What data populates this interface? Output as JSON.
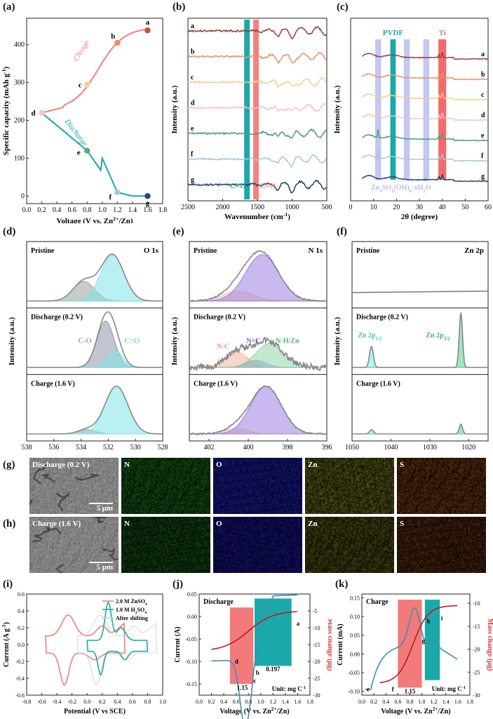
{
  "panel_labels": {
    "a": "(a)",
    "b": "(b)",
    "c": "(c)",
    "d": "(d)",
    "e": "(e)",
    "f": "(f)",
    "g": "(g)",
    "h": "(h)",
    "i": "(i)",
    "j": "(j)",
    "k": "(k)"
  },
  "colors": {
    "teal": "#1aa9a8",
    "red": "#f26b6b",
    "salmon": "#f07f7a",
    "lavender": "#b9bdf0",
    "purple": "#9d7fe0",
    "cyan": "#7fe3e6",
    "green": "#5bd08a"
  },
  "chart_data": [
    {
      "id": "a",
      "type": "line",
      "title": "",
      "xlabel": "Voltage (V vs. Zn2+/Zn)",
      "ylabel": "Specific capacity (mAh g-1)",
      "xlim": [
        0.0,
        1.8
      ],
      "ylim": [
        -20,
        470
      ],
      "xticks": [
        "0.0",
        "0.2",
        "0.4",
        "0.6",
        "0.8",
        "1.0",
        "1.2",
        "1.4",
        "1.6",
        "1.8"
      ],
      "yticks": [
        "0",
        "100",
        "200",
        "300",
        "400"
      ],
      "series": [
        {
          "name": "Charge",
          "x": [
            0.2,
            0.5,
            0.8,
            1.0,
            1.2,
            1.4,
            1.6
          ],
          "y": [
            220,
            235,
            295,
            345,
            405,
            432,
            438
          ]
        },
        {
          "name": "Discharge",
          "x": [
            0.2,
            0.4,
            0.6,
            0.8,
            1.0,
            1.2,
            1.4,
            1.6
          ],
          "y": [
            220,
            175,
            145,
            120,
            70,
            10,
            2,
            0
          ]
        }
      ],
      "points": [
        {
          "label": "a",
          "x": 1.6,
          "y": 438
        },
        {
          "label": "b",
          "x": 1.2,
          "y": 405
        },
        {
          "label": "c",
          "x": 0.8,
          "y": 295
        },
        {
          "label": "d",
          "x": 0.2,
          "y": 220
        },
        {
          "label": "e",
          "x": 0.8,
          "y": 120
        },
        {
          "label": "f",
          "x": 1.2,
          "y": 10
        },
        {
          "label": "g",
          "x": 1.6,
          "y": 0
        }
      ],
      "annotations": [
        "Chrage",
        "Discharge"
      ]
    },
    {
      "id": "b",
      "type": "line",
      "xlabel": "Wavenumber (cm-1)",
      "ylabel": "Intensity (a.u.)",
      "xlim": [
        2500,
        500
      ],
      "xticks": [
        "2500",
        "2000",
        "1500",
        "1000",
        "500"
      ],
      "series_labels": [
        "a",
        "b",
        "c",
        "d",
        "e",
        "f",
        "g"
      ],
      "bands": [
        {
          "label": "C=O",
          "center": 1650
        },
        {
          "label": "C=N",
          "center": 1520
        }
      ]
    },
    {
      "id": "c",
      "type": "line",
      "xlabel": "2θ (degree)",
      "ylabel": "Intensity (a.u.)",
      "xlim": [
        0,
        60
      ],
      "xticks": [
        "0",
        "10",
        "20",
        "30",
        "40",
        "50",
        "60"
      ],
      "series_labels": [
        "a",
        "b",
        "c",
        "d",
        "e",
        "f",
        "g"
      ],
      "bands": [
        {
          "label": "PVDF",
          "center": 18.5
        },
        {
          "label": "Ti",
          "center": 40
        }
      ],
      "zhs_bands": [
        12,
        24.5,
        33
      ],
      "annotation": "Zn4SO4(OH)6·xH2O"
    },
    {
      "id": "d",
      "type": "line",
      "element": "O 1s",
      "xlabel": "Binding energy (eV)",
      "ylabel": "Intensity (a.u.)",
      "xlim": [
        538,
        528
      ],
      "xticks": [
        "538",
        "536",
        "534",
        "532",
        "530",
        "528"
      ],
      "subpanels": [
        "Pristine",
        "Discharge (0.2 V)",
        "Charge (1.6 V)"
      ],
      "peak_labels": [
        "C-O",
        "C=O"
      ]
    },
    {
      "id": "e",
      "type": "line",
      "element": "N 1s",
      "xlabel": "Binding energy (eV)",
      "ylabel": "Intensity (a.u.)",
      "xlim": [
        403,
        396
      ],
      "xticks": [
        "402",
        "400",
        "398",
        "396"
      ],
      "subpanels": [
        "Pristine",
        "Discharge (0.2 V)",
        "Charge (1.6 V)"
      ],
      "peak_labels": [
        "N-C",
        "N=C",
        "N-H/Zn"
      ]
    },
    {
      "id": "f",
      "type": "line",
      "element": "Zn 2p",
      "xlabel": "Binding energy (eV)",
      "ylabel": "Intensity (a.u.)",
      "xlim": [
        1050,
        1015
      ],
      "xticks": [
        "1050",
        "1040",
        "1030",
        "1020"
      ],
      "subpanels": [
        "Pristine",
        "Discharge (0.2 V)",
        "Charge (1.6 V)"
      ],
      "peak_labels": [
        "Zn 2p1/2",
        "Zn 2p3/2"
      ]
    },
    {
      "id": "i",
      "type": "line",
      "xlabel": "Potential (V vs SCE)",
      "ylabel": "Current (A g-1)",
      "xlim": [
        -0.8,
        1.0
      ],
      "ylim": [
        -0.6,
        0.6
      ],
      "xticks": [
        "-0.8",
        "-0.6",
        "-0.4",
        "-0.2",
        "0.0",
        "0.2",
        "0.4",
        "0.6",
        "0.8",
        "1.0"
      ],
      "yticks": [
        "-0.6",
        "-0.4",
        "-0.2",
        "0.0",
        "0.2",
        "0.4",
        "0.6"
      ],
      "legend": [
        "2.0 M ZnSO4",
        "1.0 M H2SO4",
        "After shifting"
      ],
      "legend_position": "top-right"
    },
    {
      "id": "j",
      "type": "line",
      "title": "Discharge",
      "xlabel": "Voltage (V vs. Zn2+/Zn)",
      "ylabel": "Current (A)",
      "y2label": "Mass change (μg)",
      "xlim": [
        0.0,
        1.8
      ],
      "ylim": [
        -0.175,
        0.05
      ],
      "y2lim": [
        -30,
        0
      ],
      "xticks": [
        "0.0",
        "0.2",
        "0.4",
        "0.6",
        "0.8",
        "1.0",
        "1.2",
        "1.4",
        "1.6",
        "1.8"
      ],
      "yticks": [
        "-0.15",
        "-0.10",
        "-0.05",
        "0.00",
        "0.05"
      ],
      "y2ticks": [
        "-5",
        "-10",
        "-15",
        "-20",
        "-25",
        "-30"
      ],
      "points": [
        "a",
        "b",
        "c",
        "d"
      ],
      "box_values": [
        "1.15",
        "0.197"
      ],
      "unit_note": "Unit: mg C-1"
    },
    {
      "id": "k",
      "type": "line",
      "title": "Charge",
      "xlabel": "Voltage (V vs. Zn2+/Zn)",
      "ylabel": "Current (mA)",
      "y2label": "Mass change (μg)",
      "xlim": [
        0.0,
        1.8
      ],
      "ylim": [
        -0.11,
        0.16
      ],
      "y2lim": [
        -30,
        -8
      ],
      "xticks": [
        "0.0",
        "0.2",
        "0.4",
        "0.6",
        "0.8",
        "1.0",
        "1.2",
        "1.4",
        "1.6",
        "1.8"
      ],
      "yticks": [
        "-0.10",
        "-0.05",
        "0.00",
        "0.05",
        "0.10",
        "0.15"
      ],
      "y2ticks": [
        "-10",
        "-15",
        "-20",
        "-25",
        "-30"
      ],
      "points": [
        "e",
        "f",
        "g",
        "h",
        "i"
      ],
      "box_values": [
        "1.15"
      ],
      "unit_note": "Unit: mg C-1"
    }
  ],
  "sem": {
    "row_g": {
      "label": "Discharge (0.2 V)",
      "maps": [
        "N",
        "O",
        "Zn",
        "S"
      ],
      "scale": "5 μm"
    },
    "row_h": {
      "label": "Charge (1.6 V)",
      "maps": [
        "N",
        "O",
        "Zn",
        "S"
      ],
      "scale": "5 μm"
    }
  }
}
